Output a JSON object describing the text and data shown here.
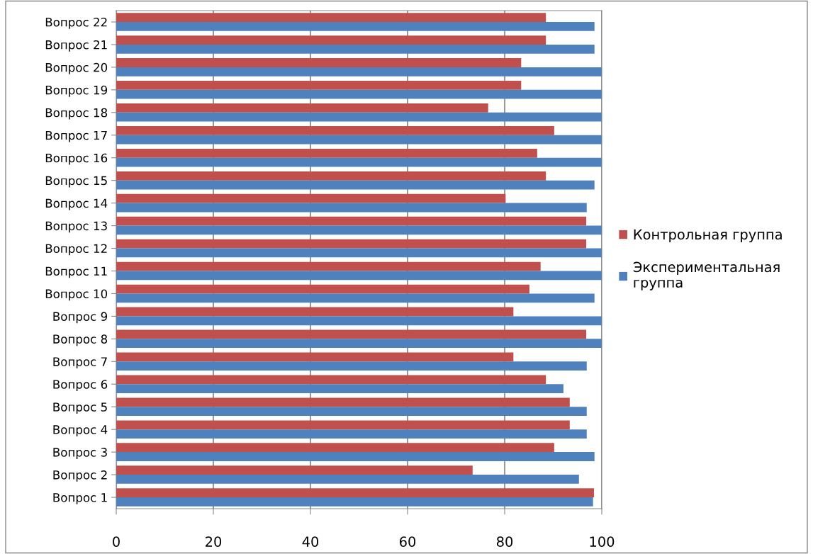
{
  "chart_data": {
    "type": "bar",
    "orientation": "horizontal",
    "categories": [
      "Вопрос 22",
      "Вопрос 21",
      "Вопрос 20",
      "Вопрос 19",
      "Вопрос 18",
      "Вопрос 17",
      "Вопрос 16",
      "Вопрос 15",
      "Вопрос 14",
      "Вопрос 13",
      "Вопрос 12",
      "Вопрос 11",
      "Вопрос 10",
      "Вопрос 9",
      "Вопрос 8",
      "Вопрос 7",
      "Вопрос 6",
      "Вопрос 5",
      "Вопрос 4",
      "Вопрос 3",
      "Вопрос 2",
      "Вопрос 1"
    ],
    "series": [
      {
        "name": "Контрольная группа",
        "color": "#c0504d",
        "values": [
          88.5,
          88.5,
          83.4,
          83.4,
          76.6,
          90.2,
          86.7,
          88.5,
          80.2,
          96.8,
          96.8,
          87.4,
          85.1,
          81.8,
          96.8,
          81.8,
          88.5,
          93.4,
          93.4,
          90.2,
          73.4,
          98.4
        ]
      },
      {
        "name": "Экспериментальная группа",
        "color": "#4f81bd",
        "values": [
          98.5,
          98.5,
          100,
          100,
          100,
          100,
          100,
          98.5,
          96.9,
          100,
          100,
          100,
          98.5,
          100,
          100,
          96.9,
          92.1,
          96.9,
          96.9,
          98.5,
          95.3,
          98.2
        ]
      }
    ],
    "xlim": [
      0,
      100
    ],
    "xticks": [
      0,
      20,
      40,
      60,
      80,
      100
    ],
    "grid": "x",
    "legend": "right"
  }
}
